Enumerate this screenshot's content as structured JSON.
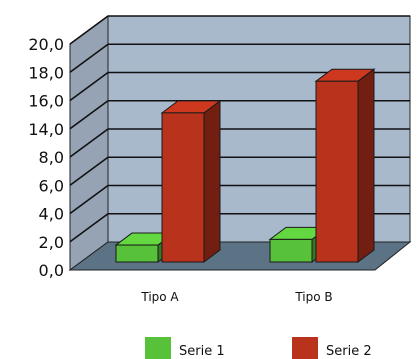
{
  "chart_data": {
    "type": "bar",
    "categories": [
      "Tipo A",
      "Tipo B"
    ],
    "series": [
      {
        "name": "Serie 1",
        "values": [
          1.5,
          2.0
        ],
        "color": "#58c13a"
      },
      {
        "name": "Serie 2",
        "values": [
          13.2,
          16.0
        ],
        "color": "#b8321c"
      }
    ],
    "y_tick_labels": [
      "0,0",
      "2,0",
      "4,0",
      "6,0",
      "8,0",
      "14,0",
      "16,0",
      "18,0",
      "20,0"
    ],
    "ylim": [
      0,
      20
    ],
    "title": "",
    "xlabel": "",
    "ylabel": "",
    "grid": true,
    "legend": "bottom",
    "projection": "3d",
    "colors": {
      "wall": "#a9b9cc",
      "floor": "#5c7386",
      "gridline": "#111111"
    }
  }
}
